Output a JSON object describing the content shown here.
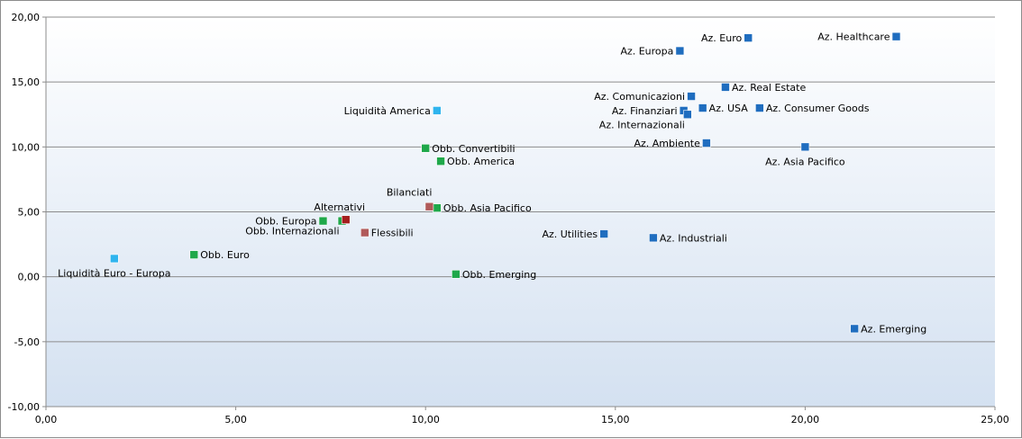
{
  "chart_data": {
    "type": "scatter",
    "title": "",
    "xlabel": "",
    "ylabel": "",
    "xlim": [
      0,
      25
    ],
    "ylim": [
      -10,
      20
    ],
    "x_ticks": [
      0,
      5,
      10,
      15,
      20,
      25
    ],
    "y_ticks": [
      -10,
      -5,
      0,
      5,
      10,
      15,
      20
    ],
    "x_tick_labels": [
      "0,00",
      "5,00",
      "10,00",
      "15,00",
      "20,00",
      "25,00"
    ],
    "y_tick_labels": [
      "-10,00",
      "-5,00",
      "0,00",
      "5,00",
      "10,00",
      "15,00",
      "20,00"
    ],
    "grid": "horizontal",
    "legend": "none",
    "colors": {
      "azionari": "#1f6dbf",
      "obbligazionari": "#1fa84a",
      "liquidita": "#2fb4ee",
      "bilanciati": "#b05a5a",
      "alternativi": "#a41e1e",
      "plot_bg_top": "#ffffff",
      "plot_bg_bottom": "#d4e1f1",
      "gridline": "#8c8c8c"
    },
    "points": [
      {
        "label": "Az. Healthcare",
        "x": 22.4,
        "y": 18.5,
        "group": "azionari",
        "label_pos": "left"
      },
      {
        "label": "Az. Euro",
        "x": 18.5,
        "y": 18.4,
        "group": "azionari",
        "label_pos": "left"
      },
      {
        "label": "Az. Europa",
        "x": 16.7,
        "y": 17.4,
        "group": "azionari",
        "label_pos": "left"
      },
      {
        "label": "Az. Real Estate",
        "x": 17.9,
        "y": 14.6,
        "group": "azionari",
        "label_pos": "right"
      },
      {
        "label": "Az. Comunicazioni",
        "x": 17.0,
        "y": 13.9,
        "group": "azionari",
        "label_pos": "left"
      },
      {
        "label": "Az. Finanziari",
        "x": 16.8,
        "y": 12.8,
        "group": "azionari",
        "label_pos": "left"
      },
      {
        "label": "Az. USA",
        "x": 17.3,
        "y": 13.0,
        "group": "azionari",
        "label_pos": "right"
      },
      {
        "label": "Az. Consumer Goods",
        "x": 18.8,
        "y": 13.0,
        "group": "azionari",
        "label_pos": "right"
      },
      {
        "label": "Az. Internazionali",
        "x": 16.9,
        "y": 12.5,
        "group": "azionari",
        "label_pos": "below-left"
      },
      {
        "label": "Az. Ambiente",
        "x": 17.4,
        "y": 10.3,
        "group": "azionari",
        "label_pos": "left"
      },
      {
        "label": "Az. Asia Pacifico",
        "x": 20.0,
        "y": 10.0,
        "group": "azionari",
        "label_pos": "below"
      },
      {
        "label": "Az. Utilities",
        "x": 14.7,
        "y": 3.3,
        "group": "azionari",
        "label_pos": "left"
      },
      {
        "label": "Az. Industriali",
        "x": 16.0,
        "y": 3.0,
        "group": "azionari",
        "label_pos": "right"
      },
      {
        "label": "Az. Emerging",
        "x": 21.3,
        "y": -4.0,
        "group": "azionari",
        "label_pos": "right"
      },
      {
        "label": "Liquidità America",
        "x": 10.3,
        "y": 12.8,
        "group": "liquidita",
        "label_pos": "left"
      },
      {
        "label": "Liquidità Euro - Europa",
        "x": 1.8,
        "y": 1.4,
        "group": "liquidita",
        "label_pos": "below"
      },
      {
        "label": "Obb. Convertibili",
        "x": 10.0,
        "y": 9.9,
        "group": "obbligazionari",
        "label_pos": "right"
      },
      {
        "label": "Obb. America",
        "x": 10.4,
        "y": 8.9,
        "group": "obbligazionari",
        "label_pos": "right"
      },
      {
        "label": "Obb. Asia Pacifico",
        "x": 10.3,
        "y": 5.3,
        "group": "obbligazionari",
        "label_pos": "right"
      },
      {
        "label": "Obb. Europa",
        "x": 7.3,
        "y": 4.3,
        "group": "obbligazionari",
        "label_pos": "left"
      },
      {
        "label": "Obb. Internazionali",
        "x": 7.8,
        "y": 4.3,
        "group": "obbligazionari",
        "label_pos": "below-left"
      },
      {
        "label": "Obb. Euro",
        "x": 3.9,
        "y": 1.7,
        "group": "obbligazionari",
        "label_pos": "right"
      },
      {
        "label": "Obb. Emerging",
        "x": 10.8,
        "y": 0.2,
        "group": "obbligazionari",
        "label_pos": "right"
      },
      {
        "label": "Bilanciati",
        "x": 10.1,
        "y": 5.4,
        "group": "bilanciati",
        "label_pos": "above-left"
      },
      {
        "label": "Flessibili",
        "x": 8.4,
        "y": 3.4,
        "group": "bilanciati",
        "label_pos": "right"
      },
      {
        "label": "Alternativi",
        "x": 7.9,
        "y": 4.4,
        "group": "alternativi",
        "label_pos": "above"
      }
    ]
  }
}
